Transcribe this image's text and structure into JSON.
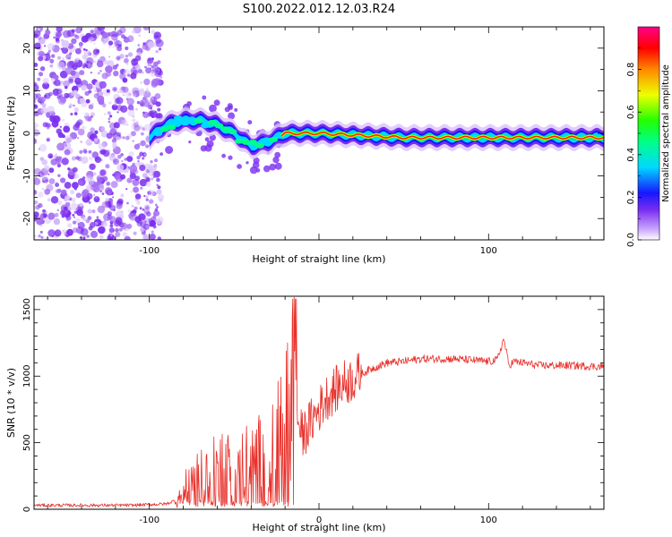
{
  "title": "S100.2022.012.12.03.R24",
  "colors": {
    "spectrum_low": "#a23cf0",
    "spectrum_mid": "#00c8ff",
    "spectrum_high": "#ff0033",
    "snr_line": "#e8302a"
  },
  "chart_data": [
    {
      "type": "heatmap",
      "title": "S100.2022.012.12.03.R24",
      "xlabel": "Height of straight line (km)",
      "ylabel": "Frequency (Hz)",
      "xlim": [
        -168,
        168
      ],
      "ylim": [
        -25,
        25
      ],
      "x_ticks": [
        "-100",
        "100"
      ],
      "y_ticks": [
        "-20",
        "-10",
        "0",
        "10",
        "20"
      ],
      "colorbar": {
        "label": "Normalized spectral amplitude",
        "range": [
          0.0,
          1.0
        ],
        "ticks": [
          "0.0",
          "0.2",
          "0.4",
          "0.6",
          "0.8"
        ]
      },
      "ridge": [
        {
          "x": -100,
          "f": -1
        },
        {
          "x": -90,
          "f": 2
        },
        {
          "x": -80,
          "f": 3
        },
        {
          "x": -70,
          "f": 3
        },
        {
          "x": -60,
          "f": 2
        },
        {
          "x": -50,
          "f": 0
        },
        {
          "x": -40,
          "f": -3
        },
        {
          "x": -30,
          "f": -2
        },
        {
          "x": -20,
          "f": 0
        },
        {
          "x": 0,
          "f": 0
        },
        {
          "x": 50,
          "f": -1
        },
        {
          "x": 100,
          "f": -1
        },
        {
          "x": 168,
          "f": -1
        }
      ]
    },
    {
      "type": "line",
      "xlabel": "Height of straight line (km)",
      "ylabel": "SNR (10 * v/v)",
      "xlim": [
        -168,
        168
      ],
      "ylim": [
        0,
        1600
      ],
      "x_ticks": [
        "-100",
        "0",
        "100"
      ],
      "y_ticks": [
        "0",
        "500",
        "1000",
        "1500"
      ],
      "series": [
        {
          "x": [
            -168,
            -140,
            -110,
            -90,
            -82,
            -75,
            -65,
            -55,
            -45,
            -35,
            -28,
            -20,
            -16,
            -15,
            -13,
            -10,
            -5,
            0,
            5,
            10,
            15,
            20,
            30,
            40,
            50,
            60,
            80,
            100,
            105,
            109,
            112,
            115,
            130,
            150,
            168
          ],
          "y": [
            30,
            30,
            30,
            40,
            80,
            230,
            280,
            310,
            330,
            380,
            450,
            600,
            800,
            1580,
            700,
            550,
            650,
            750,
            850,
            900,
            950,
            980,
            1050,
            1100,
            1110,
            1130,
            1130,
            1110,
            1120,
            1280,
            1080,
            1110,
            1080,
            1080,
            1070
          ]
        }
      ]
    }
  ]
}
